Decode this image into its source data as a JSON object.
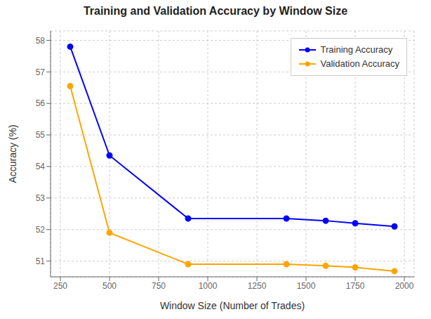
{
  "chart_data": {
    "type": "line",
    "title": "Training and Validation Accuracy by Window Size",
    "xlabel": "Window Size (Number of Trades)",
    "ylabel": "Accuracy (%)",
    "x": [
      300,
      500,
      900,
      1400,
      1600,
      1750,
      1950
    ],
    "series": [
      {
        "name": "Training Accuracy",
        "color": "#0000ff",
        "marker": "circle",
        "values": [
          57.8,
          54.35,
          52.35,
          52.35,
          52.28,
          52.2,
          52.1
        ]
      },
      {
        "name": "Validation Accuracy",
        "color": "#ffa500",
        "marker": "circle",
        "values": [
          56.55,
          51.9,
          50.9,
          50.9,
          50.85,
          50.8,
          50.68
        ]
      }
    ],
    "xlim": [
      200,
      2050
    ],
    "ylim": [
      50.5,
      58.3
    ],
    "xticks": [
      250,
      500,
      750,
      1000,
      1250,
      1500,
      1750,
      2000
    ],
    "yticks": [
      51,
      52,
      53,
      54,
      55,
      56,
      57,
      58
    ],
    "grid": true,
    "legend": "upper right"
  }
}
